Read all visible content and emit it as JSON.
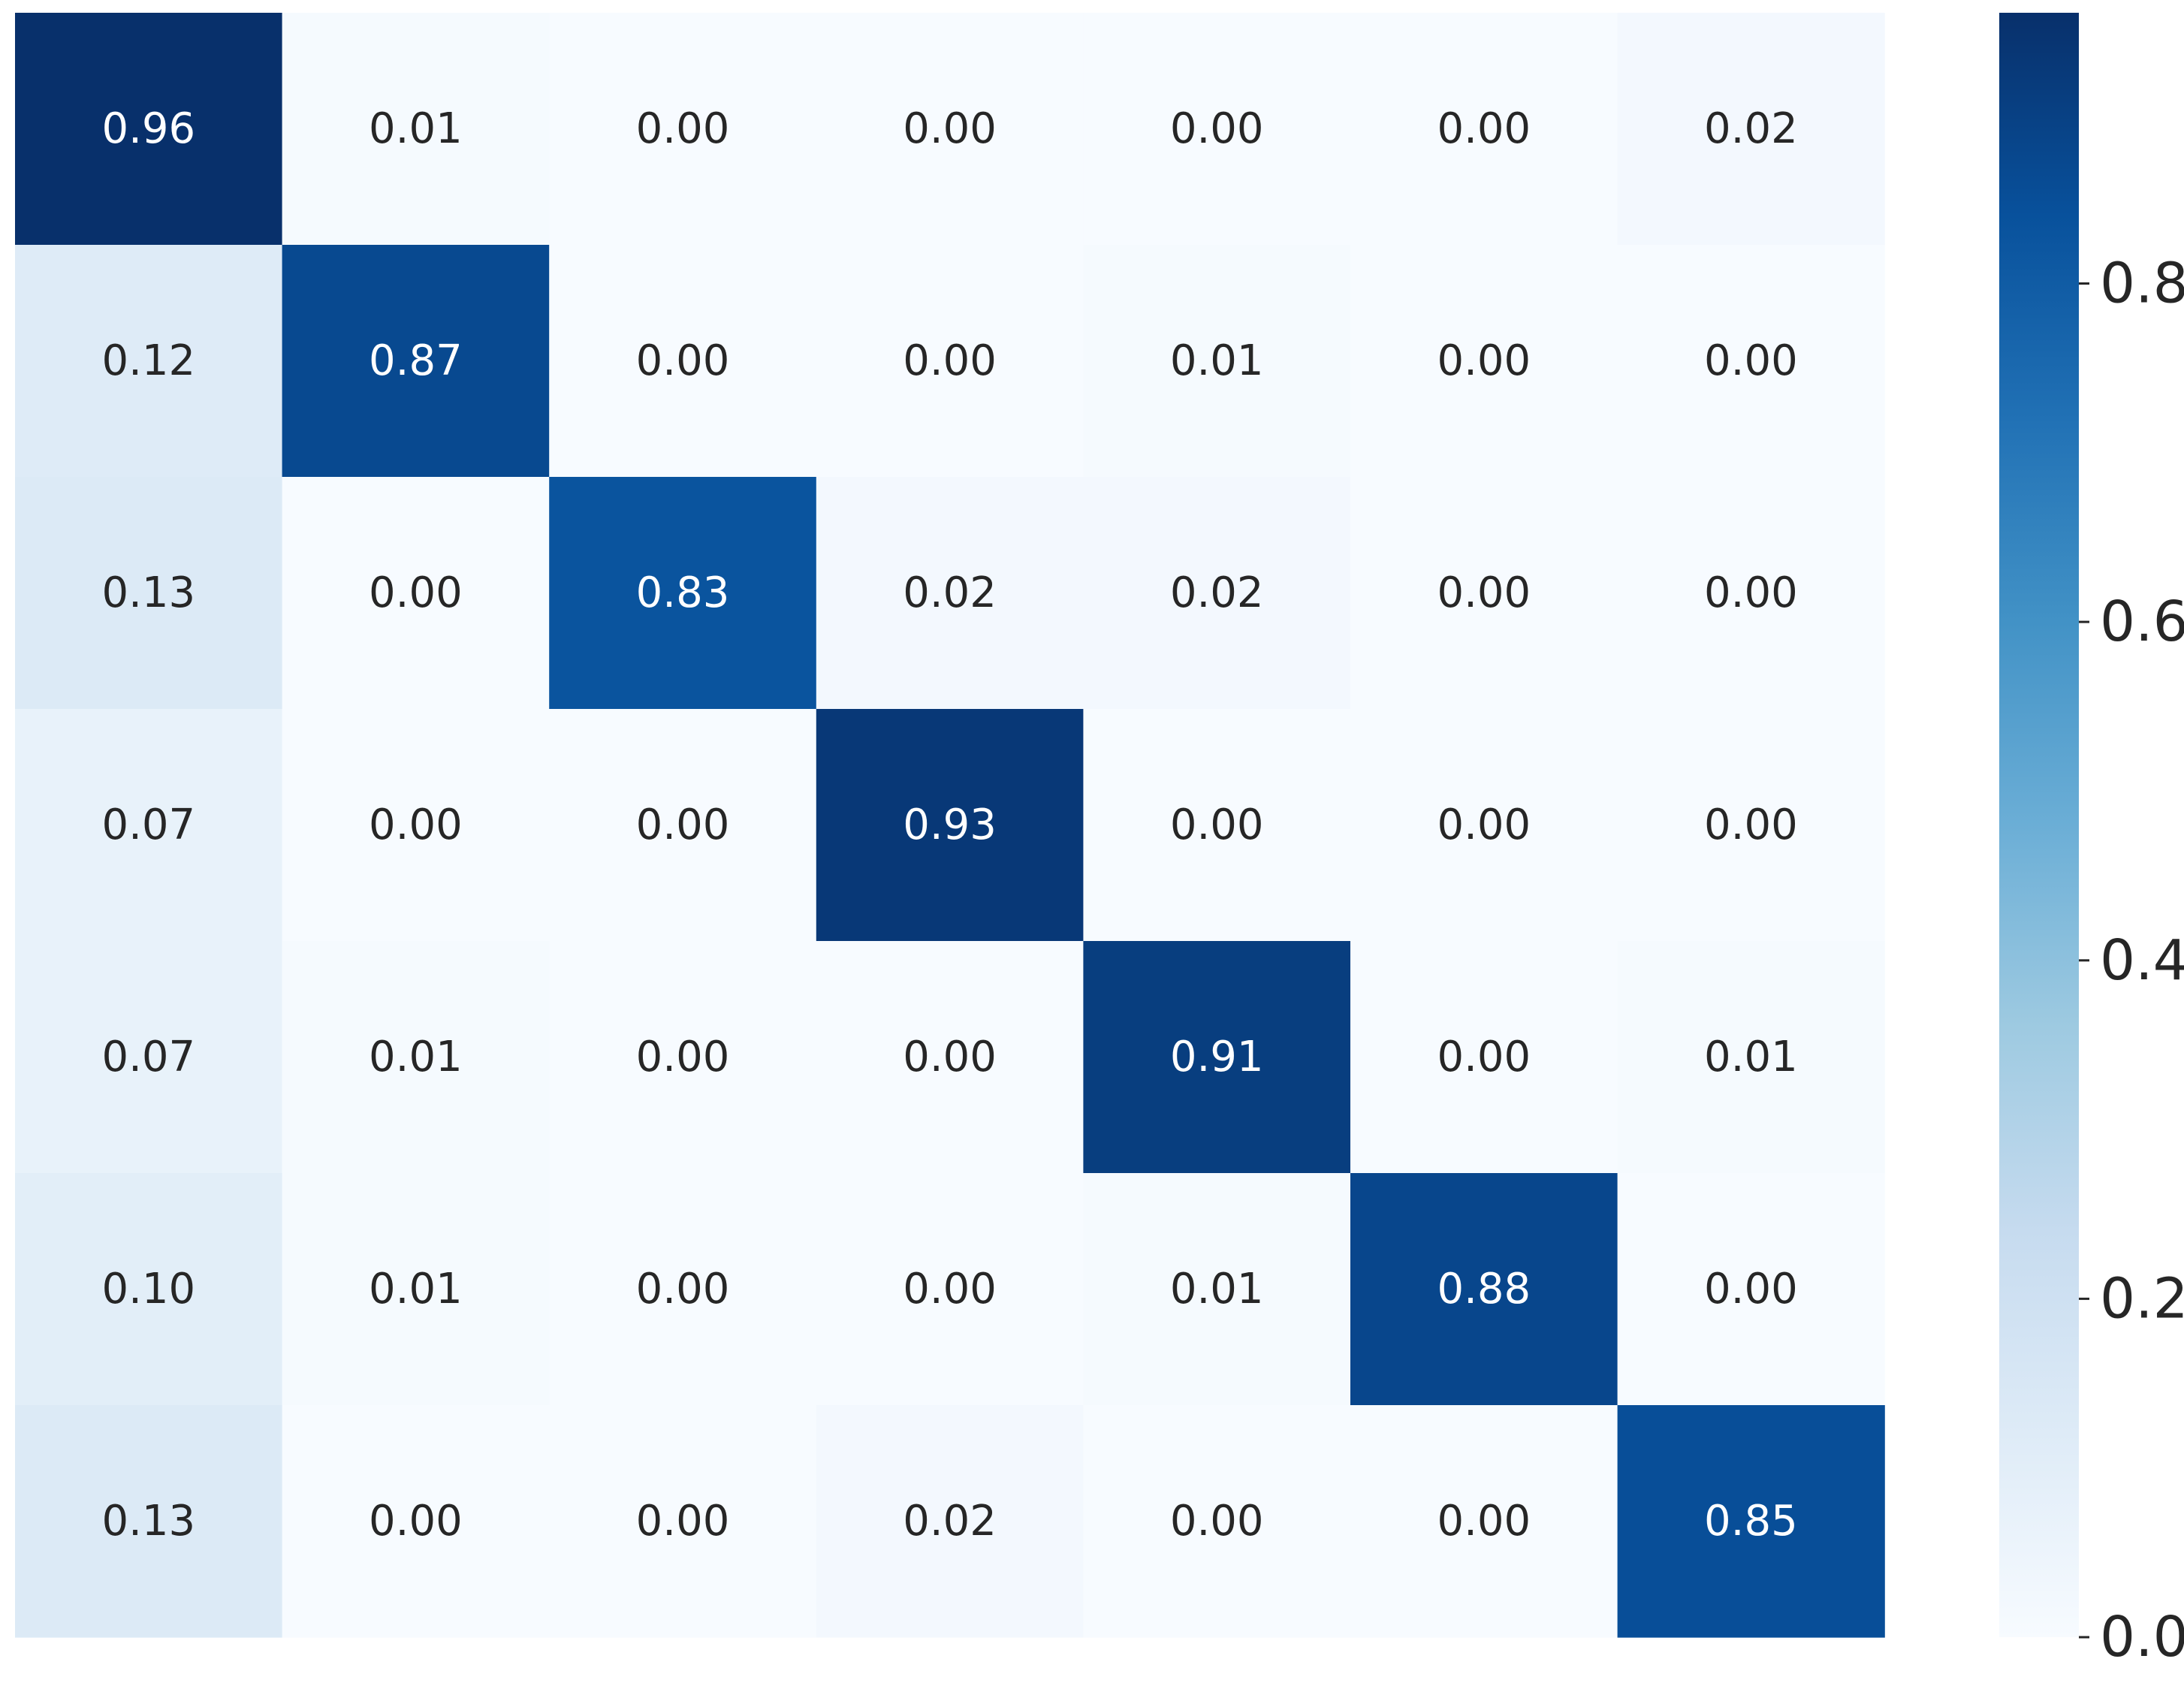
{
  "chart_data": {
    "type": "heatmap",
    "title": "",
    "xlabel": "",
    "ylabel": "",
    "rows": 7,
    "cols": 7,
    "values": [
      [
        0.96,
        0.01,
        0.0,
        0.0,
        0.0,
        0.0,
        0.02
      ],
      [
        0.12,
        0.87,
        0.0,
        0.0,
        0.01,
        0.0,
        0.0
      ],
      [
        0.13,
        0.0,
        0.83,
        0.02,
        0.02,
        0.0,
        0.0
      ],
      [
        0.07,
        0.0,
        0.0,
        0.93,
        0.0,
        0.0,
        0.0
      ],
      [
        0.07,
        0.01,
        0.0,
        0.0,
        0.91,
        0.0,
        0.01
      ],
      [
        0.1,
        0.01,
        0.0,
        0.0,
        0.01,
        0.88,
        0.0
      ],
      [
        0.13,
        0.0,
        0.0,
        0.02,
        0.0,
        0.0,
        0.85
      ]
    ],
    "value_labels": [
      [
        "0.96",
        "0.01",
        "0.00",
        "0.00",
        "0.00",
        "0.00",
        "0.02"
      ],
      [
        "0.12",
        "0.87",
        "0.00",
        "0.00",
        "0.01",
        "0.00",
        "0.00"
      ],
      [
        "0.13",
        "0.00",
        "0.83",
        "0.02",
        "0.02",
        "0.00",
        "0.00"
      ],
      [
        "0.07",
        "0.00",
        "0.00",
        "0.93",
        "0.00",
        "0.00",
        "0.00"
      ],
      [
        "0.07",
        "0.01",
        "0.00",
        "0.00",
        "0.91",
        "0.00",
        "0.01"
      ],
      [
        "0.10",
        "0.01",
        "0.00",
        "0.00",
        "0.01",
        "0.88",
        "0.00"
      ],
      [
        "0.13",
        "0.00",
        "0.00",
        "0.02",
        "0.00",
        "0.00",
        "0.85"
      ]
    ],
    "colormap": "Blues",
    "colormap_stops": [
      "#f7fbff",
      "#deebf7",
      "#c6dbef",
      "#9ecae1",
      "#6baed6",
      "#4292c6",
      "#2171b5",
      "#08519c",
      "#08306b"
    ],
    "vmin": 0.0,
    "vmax": 0.96,
    "colorbar": {
      "ticks": [
        0.0,
        0.2,
        0.4,
        0.6,
        0.8
      ],
      "tick_labels": [
        "0.0",
        "0.2",
        "0.4",
        "0.6",
        "0.8"
      ],
      "placement": "right"
    },
    "text_color_dark": "#262626",
    "text_color_light": "#ffffff",
    "grid": false,
    "legend": "none"
  }
}
